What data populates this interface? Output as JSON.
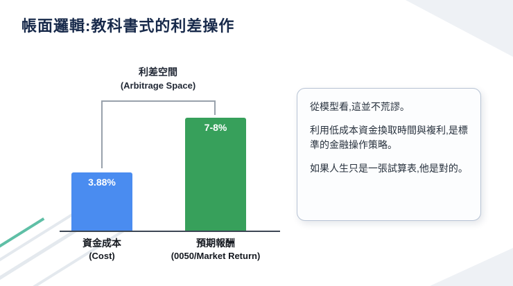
{
  "slide": {
    "title": "帳面邏輯:教科書式的利差操作"
  },
  "chart_data": {
    "type": "bar",
    "title": "",
    "xlabel": "",
    "ylabel": "",
    "ylim": [
      0,
      9
    ],
    "grid": false,
    "legend": false,
    "annotation": {
      "line1": "利差空間",
      "line2": "(Arbitrage Space)"
    },
    "categories": [
      "資金成本 (Cost)",
      "預期報酬 (0050/Market Return)"
    ],
    "bars": [
      {
        "label_line1": "資金成本",
        "label_line2": "(Cost)",
        "value": 3.88,
        "value_label": "3.88%",
        "color": "#4a8cf0"
      },
      {
        "label_line1": "預期報酬",
        "label_line2": "(0050/Market Return)",
        "value": 7.5,
        "value_label": "7-8%",
        "color": "#37a05b"
      }
    ]
  },
  "note_card": {
    "paragraphs": [
      "從模型看,這並不荒謬。",
      "利用低成本資金換取時間與複利,是標準的金融操作策略。",
      "如果人生只是一張試算表,他是對的。"
    ]
  },
  "colors": {
    "title": "#17294a",
    "bar_cost": "#4a8cf0",
    "bar_return": "#37a05b",
    "bracket": "#98a1ab",
    "card_border": "#b7c3d4",
    "accent_teal": "#5fbfa6"
  }
}
